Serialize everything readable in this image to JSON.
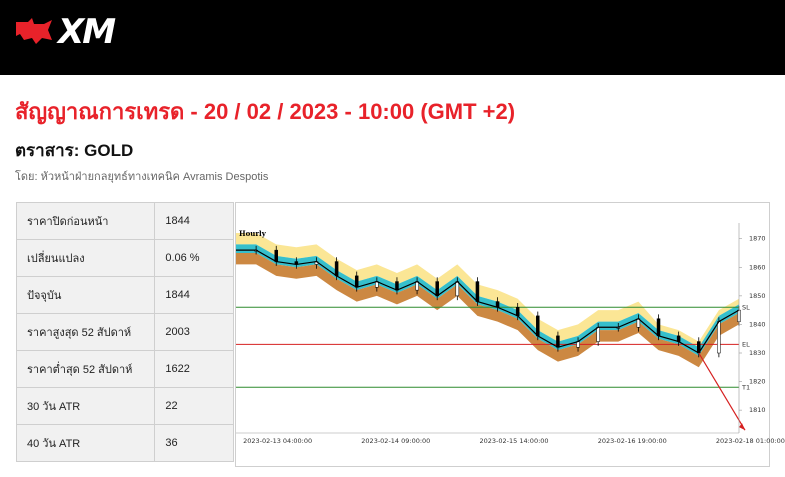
{
  "brand": {
    "name": "XM"
  },
  "header": {
    "title": "สัญญาณการเทรด - 20 / 02 / 2023 - 10:00 (GMT +2)",
    "instrument": "ตราสาร: GOLD",
    "author": "โดย: หัวหน้าฝ่ายกลยุทธ์ทางเทคนิค Avramis Despotis"
  },
  "stats": [
    {
      "label": "ราคาปิดก่อนหน้า",
      "value": "1844"
    },
    {
      "label": "เปลี่ยนแปลง",
      "value": "0.06 %"
    },
    {
      "label": "ปัจจุบัน",
      "value": "1844"
    },
    {
      "label": "ราคาสูงสุด 52 สัปดาห์",
      "value": "2003"
    },
    {
      "label": "ราคาต่ำสุด 52 สัปดาห์",
      "value": "1622"
    },
    {
      "label": "30 วัน ATR",
      "value": "22"
    },
    {
      "label": "40 วัน ATR",
      "value": "36"
    }
  ],
  "chart_data": {
    "type": "line",
    "timeframe": "Hourly",
    "ylim": [
      1802,
      1872
    ],
    "y_ticks": [
      "1870",
      "1860",
      "1850",
      "1840",
      "1830",
      "1820",
      "1810"
    ],
    "x_ticks": [
      "2023-02-13 04:00:00",
      "2023-02-14 09:00:00",
      "2023-02-15 14:00:00",
      "2023-02-16 19:00:00",
      "2023-02-18 01:00:00"
    ],
    "levels": [
      {
        "label": "SL",
        "value": 1846,
        "color": "#2e8b2e"
      },
      {
        "label": "EL",
        "value": 1833,
        "color": "#d62020"
      },
      {
        "label": "T1",
        "value": 1818,
        "color": "#2e8b2e"
      }
    ],
    "price_x": [
      0,
      4,
      8,
      12,
      16,
      20,
      24,
      28,
      32,
      36,
      40,
      44,
      48,
      52,
      56,
      60,
      64,
      68,
      72,
      76,
      80,
      84,
      88,
      92,
      96,
      100
    ],
    "price_y": [
      1866,
      1866,
      1862,
      1861,
      1862,
      1857,
      1853,
      1855,
      1852,
      1855,
      1850,
      1855,
      1848,
      1846,
      1843,
      1836,
      1832,
      1834,
      1839,
      1839,
      1842,
      1836,
      1834,
      1830,
      1841,
      1845
    ]
  }
}
